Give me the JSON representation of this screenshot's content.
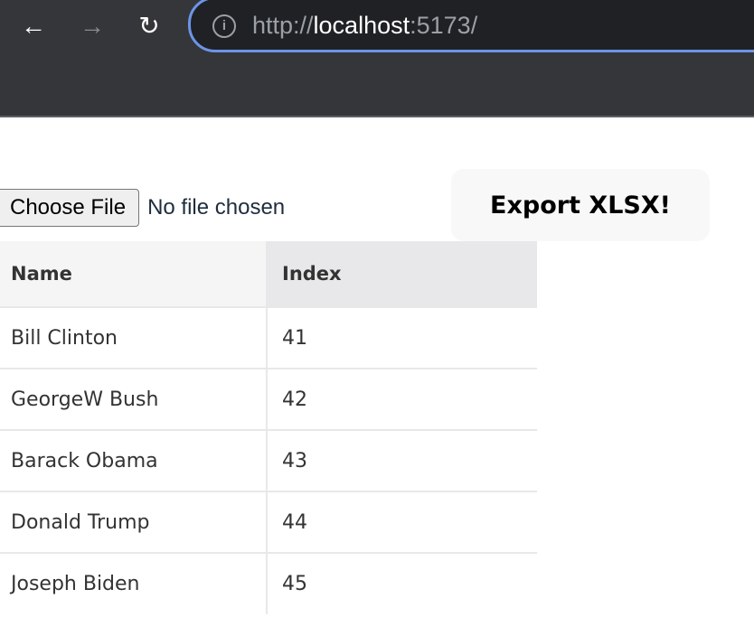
{
  "browser": {
    "url_scheme": "http://",
    "url_host": "localhost",
    "url_port": ":5173/"
  },
  "file_input": {
    "button_label": "Choose File",
    "status": "No file chosen"
  },
  "export_button": "Export XLSX!",
  "table": {
    "headers": [
      "Name",
      "Index"
    ],
    "rows": [
      [
        "Bill Clinton",
        "41"
      ],
      [
        "GeorgeW Bush",
        "42"
      ],
      [
        "Barack Obama",
        "43"
      ],
      [
        "Donald Trump",
        "44"
      ],
      [
        "Joseph Biden",
        "45"
      ]
    ],
    "selected_cell": {
      "row": 5,
      "column": "Index"
    }
  },
  "colors": {
    "selection": "#4a5ee8",
    "omnibox_focus": "#6d94e8"
  }
}
